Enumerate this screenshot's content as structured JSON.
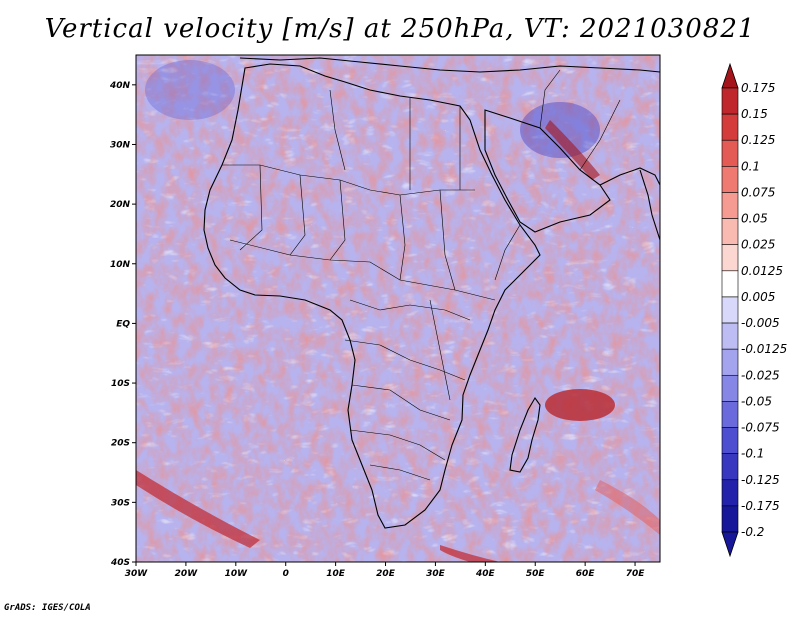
{
  "title": "Vertical velocity [m/s] at 250hPa, VT: 2021030821",
  "credit": "GrADS: IGES/COLA",
  "map": {
    "lat_labels": [
      "40N",
      "30N",
      "20N",
      "10N",
      "EQ",
      "10S",
      "20S",
      "30S",
      "40S"
    ],
    "lon_labels": [
      "30W",
      "20W",
      "10W",
      "0",
      "10E",
      "20E",
      "30E",
      "40E",
      "50E",
      "60E",
      "70E"
    ],
    "lon_range": [
      -30,
      75
    ],
    "lat_range": [
      -40,
      45
    ]
  },
  "colorbar": {
    "labels": [
      "0.175",
      "0.15",
      "0.125",
      "0.1",
      "0.075",
      "0.05",
      "0.025",
      "0.0125",
      "0.005",
      "-0.005",
      "-0.0125",
      "-0.025",
      "-0.05",
      "-0.075",
      "-0.1",
      "-0.125",
      "-0.175",
      "-0.2"
    ],
    "colors": [
      "#a3141b",
      "#c0272d",
      "#d43c3c",
      "#e45a55",
      "#ee7a72",
      "#f59b92",
      "#f9bab2",
      "#fcd6d0",
      "#ffffff",
      "#d8d8fb",
      "#bdbdf4",
      "#a3a3ee",
      "#8686e6",
      "#6a6adc",
      "#4e4ed0",
      "#3737c0",
      "#2222aa",
      "#17179a"
    ]
  },
  "palette": {
    "land": "#000000",
    "border": "#000000",
    "background_field": "#b9b4ee"
  }
}
